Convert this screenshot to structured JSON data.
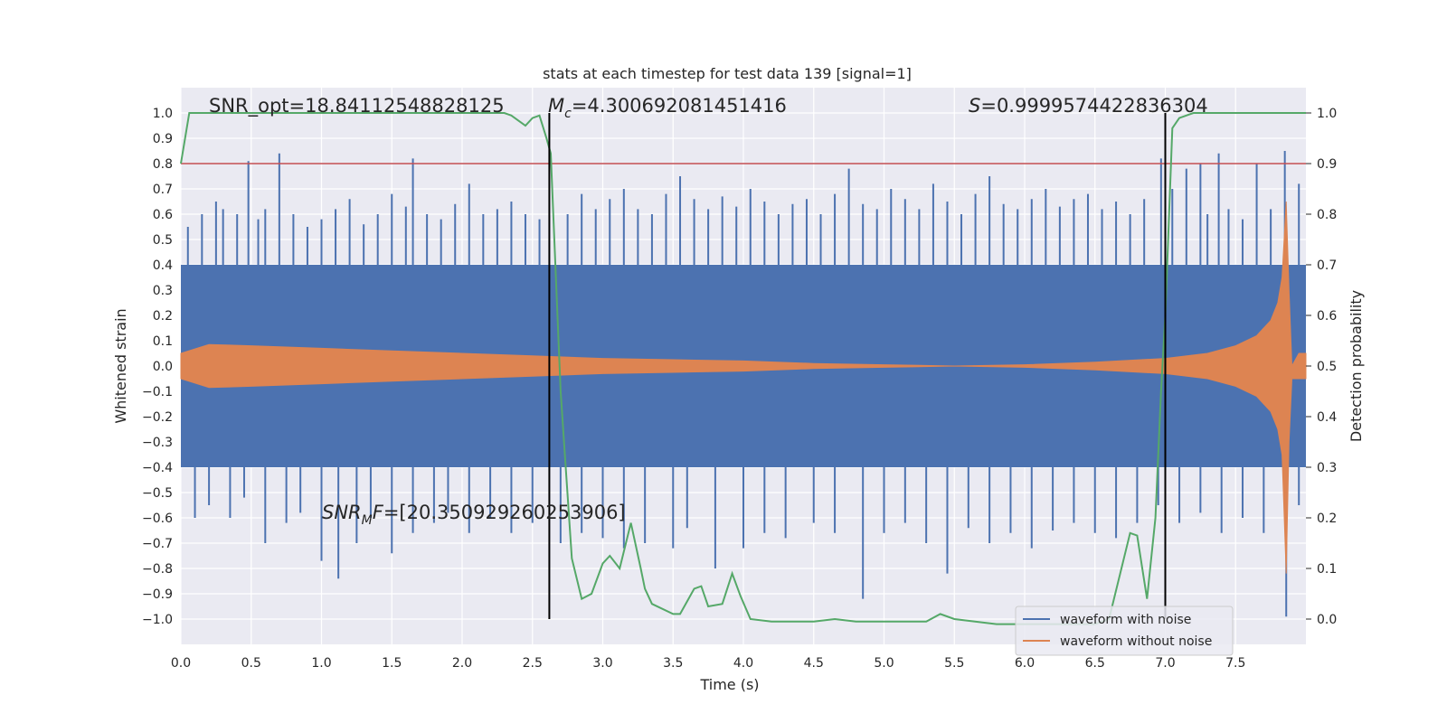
{
  "chart_data": {
    "type": "line",
    "title": "stats at each timestep for test data 139 [signal=1]",
    "xlabel": "Time (s)",
    "ylabel": "Whitened strain",
    "ylabel_right": "Detection probability",
    "xlim": [
      0.0,
      8.0
    ],
    "ylim": [
      -1.1,
      1.1
    ],
    "ylim_right": [
      -0.05,
      1.05
    ],
    "x_ticks": [
      "0.0",
      "0.5",
      "1.0",
      "1.5",
      "2.0",
      "2.5",
      "3.0",
      "3.5",
      "4.0",
      "4.5",
      "5.0",
      "5.5",
      "6.0",
      "6.5",
      "7.0",
      "7.5"
    ],
    "y_ticks": [
      "1.0",
      "0.9",
      "0.8",
      "0.7",
      "0.6",
      "0.5",
      "0.4",
      "0.3",
      "0.2",
      "0.1",
      "0.0",
      "−0.1",
      "−0.2",
      "−0.3",
      "−0.4",
      "−0.5",
      "−0.6",
      "−0.7",
      "−0.8",
      "−0.9",
      "−1.0"
    ],
    "y_ticks_right": [
      "1.0",
      "0.9",
      "0.8",
      "0.7",
      "0.6",
      "0.5",
      "0.4",
      "0.3",
      "0.2",
      "0.1",
      "0.0"
    ],
    "grid": true,
    "legend_position": "lower-right",
    "annotations": {
      "snr_opt": "SNR_opt=18.84112548828125",
      "mc": "=4.300692081451416",
      "s": "=0.9999574422836304",
      "snr_mf": "=[20.350929260253906]"
    },
    "threshold": {
      "y": 0.8,
      "color": "#c44e52"
    },
    "vlines": [
      {
        "x": 2.62,
        "ymin": -1.0,
        "ymax": 1.0,
        "color": "#000000"
      },
      {
        "x": 7.0,
        "ymin": -1.0,
        "ymax": 1.0,
        "color": "#000000"
      }
    ],
    "series": [
      {
        "name": "waveform with noise",
        "color": "#4c72b0",
        "band": {
          "x": [
            0.0,
            8.0
          ],
          "upper": [
            0.4,
            0.4
          ],
          "lower": [
            -0.4,
            -0.4
          ]
        },
        "spikes_up": [
          [
            0.05,
            0.55
          ],
          [
            0.15,
            0.6
          ],
          [
            0.25,
            0.65
          ],
          [
            0.3,
            0.62
          ],
          [
            0.4,
            0.6
          ],
          [
            0.48,
            0.81
          ],
          [
            0.55,
            0.58
          ],
          [
            0.6,
            0.62
          ],
          [
            0.7,
            0.84
          ],
          [
            0.8,
            0.6
          ],
          [
            0.9,
            0.55
          ],
          [
            1.0,
            0.58
          ],
          [
            1.1,
            0.62
          ],
          [
            1.2,
            0.66
          ],
          [
            1.3,
            0.56
          ],
          [
            1.4,
            0.6
          ],
          [
            1.5,
            0.68
          ],
          [
            1.6,
            0.63
          ],
          [
            1.65,
            0.82
          ],
          [
            1.75,
            0.6
          ],
          [
            1.85,
            0.58
          ],
          [
            1.95,
            0.64
          ],
          [
            2.05,
            0.72
          ],
          [
            2.15,
            0.6
          ],
          [
            2.25,
            0.62
          ],
          [
            2.35,
            0.65
          ],
          [
            2.45,
            0.6
          ],
          [
            2.55,
            0.58
          ],
          [
            2.75,
            0.6
          ],
          [
            2.85,
            0.68
          ],
          [
            2.95,
            0.62
          ],
          [
            3.05,
            0.66
          ],
          [
            3.15,
            0.7
          ],
          [
            3.25,
            0.62
          ],
          [
            3.35,
            0.6
          ],
          [
            3.45,
            0.68
          ],
          [
            3.55,
            0.75
          ],
          [
            3.65,
            0.66
          ],
          [
            3.75,
            0.62
          ],
          [
            3.85,
            0.67
          ],
          [
            3.95,
            0.63
          ],
          [
            4.05,
            0.7
          ],
          [
            4.15,
            0.65
          ],
          [
            4.25,
            0.6
          ],
          [
            4.35,
            0.64
          ],
          [
            4.45,
            0.66
          ],
          [
            4.55,
            0.6
          ],
          [
            4.65,
            0.68
          ],
          [
            4.75,
            0.78
          ],
          [
            4.85,
            0.64
          ],
          [
            4.95,
            0.62
          ],
          [
            5.05,
            0.7
          ],
          [
            5.15,
            0.66
          ],
          [
            5.25,
            0.62
          ],
          [
            5.35,
            0.72
          ],
          [
            5.45,
            0.65
          ],
          [
            5.55,
            0.6
          ],
          [
            5.65,
            0.68
          ],
          [
            5.75,
            0.75
          ],
          [
            5.85,
            0.64
          ],
          [
            5.95,
            0.62
          ],
          [
            6.05,
            0.66
          ],
          [
            6.15,
            0.7
          ],
          [
            6.25,
            0.63
          ],
          [
            6.35,
            0.66
          ],
          [
            6.45,
            0.68
          ],
          [
            6.55,
            0.62
          ],
          [
            6.65,
            0.65
          ],
          [
            6.75,
            0.6
          ],
          [
            6.85,
            0.66
          ],
          [
            6.97,
            0.82
          ],
          [
            7.05,
            0.7
          ],
          [
            7.15,
            0.78
          ],
          [
            7.25,
            0.8
          ],
          [
            7.3,
            0.6
          ],
          [
            7.38,
            0.84
          ],
          [
            7.45,
            0.62
          ],
          [
            7.55,
            0.58
          ],
          [
            7.65,
            0.8
          ],
          [
            7.75,
            0.62
          ],
          [
            7.85,
            0.85
          ],
          [
            7.95,
            0.72
          ]
        ],
        "spikes_down": [
          [
            0.1,
            -0.6
          ],
          [
            0.2,
            -0.55
          ],
          [
            0.35,
            -0.6
          ],
          [
            0.45,
            -0.52
          ],
          [
            0.6,
            -0.7
          ],
          [
            0.75,
            -0.62
          ],
          [
            0.85,
            -0.58
          ],
          [
            1.0,
            -0.77
          ],
          [
            1.12,
            -0.84
          ],
          [
            1.25,
            -0.7
          ],
          [
            1.35,
            -0.6
          ],
          [
            1.5,
            -0.74
          ],
          [
            1.65,
            -0.66
          ],
          [
            1.8,
            -0.62
          ],
          [
            1.9,
            -0.58
          ],
          [
            2.05,
            -0.66
          ],
          [
            2.2,
            -0.6
          ],
          [
            2.35,
            -0.66
          ],
          [
            2.5,
            -0.62
          ],
          [
            2.7,
            -0.7
          ],
          [
            2.85,
            -0.66
          ],
          [
            3.0,
            -0.68
          ],
          [
            3.15,
            -0.72
          ],
          [
            3.3,
            -0.7
          ],
          [
            3.5,
            -0.72
          ],
          [
            3.6,
            -0.64
          ],
          [
            3.8,
            -0.8
          ],
          [
            4.0,
            -0.72
          ],
          [
            4.15,
            -0.66
          ],
          [
            4.3,
            -0.68
          ],
          [
            4.5,
            -0.62
          ],
          [
            4.65,
            -0.66
          ],
          [
            4.85,
            -0.92
          ],
          [
            5.0,
            -0.66
          ],
          [
            5.15,
            -0.62
          ],
          [
            5.3,
            -0.7
          ],
          [
            5.45,
            -0.82
          ],
          [
            5.6,
            -0.64
          ],
          [
            5.75,
            -0.7
          ],
          [
            5.9,
            -0.66
          ],
          [
            6.05,
            -0.72
          ],
          [
            6.2,
            -0.65
          ],
          [
            6.35,
            -0.62
          ],
          [
            6.5,
            -0.66
          ],
          [
            6.65,
            -0.68
          ],
          [
            6.8,
            -0.62
          ],
          [
            6.95,
            -0.55
          ],
          [
            7.1,
            -0.62
          ],
          [
            7.25,
            -0.58
          ],
          [
            7.4,
            -0.66
          ],
          [
            7.55,
            -0.6
          ],
          [
            7.7,
            -0.66
          ],
          [
            7.86,
            -0.99
          ],
          [
            7.95,
            -0.55
          ]
        ]
      },
      {
        "name": "waveform without noise",
        "color": "#dd8452",
        "envelope": {
          "x": [
            0.0,
            0.2,
            0.5,
            1.0,
            1.5,
            2.0,
            2.5,
            3.0,
            3.5,
            4.0,
            4.5,
            5.0,
            5.5,
            6.0,
            6.5,
            7.0,
            7.3,
            7.5,
            7.65,
            7.75,
            7.8,
            7.83,
            7.86,
            7.88,
            7.9,
            7.95,
            8.0
          ],
          "upper": [
            0.05,
            0.085,
            0.08,
            0.07,
            0.06,
            0.05,
            0.04,
            0.03,
            0.025,
            0.02,
            0.01,
            0.005,
            0.0,
            0.005,
            0.015,
            0.03,
            0.05,
            0.08,
            0.12,
            0.18,
            0.25,
            0.35,
            0.65,
            0.3,
            0.0,
            0.05,
            0.05
          ],
          "lower": [
            -0.05,
            -0.085,
            -0.08,
            -0.07,
            -0.06,
            -0.05,
            -0.04,
            -0.03,
            -0.025,
            -0.02,
            -0.01,
            -0.005,
            0.0,
            -0.005,
            -0.015,
            -0.03,
            -0.05,
            -0.08,
            -0.12,
            -0.18,
            -0.25,
            -0.35,
            -0.82,
            -0.3,
            -0.05,
            -0.05,
            -0.05
          ]
        }
      },
      {
        "name": "detection probability",
        "color": "#55a868",
        "axis": "right",
        "x": [
          0.0,
          0.06,
          0.1,
          0.5,
          1.0,
          1.5,
          2.0,
          2.3,
          2.35,
          2.4,
          2.45,
          2.5,
          2.55,
          2.6,
          2.63,
          2.7,
          2.78,
          2.85,
          2.92,
          3.0,
          3.05,
          3.12,
          3.2,
          3.27,
          3.3,
          3.35,
          3.5,
          3.55,
          3.65,
          3.7,
          3.75,
          3.85,
          3.92,
          3.98,
          4.05,
          4.2,
          4.5,
          4.65,
          4.8,
          5.0,
          5.3,
          5.4,
          5.5,
          5.8,
          6.2,
          6.5,
          6.6,
          6.75,
          6.8,
          6.87,
          6.93,
          6.97,
          7.0,
          7.05,
          7.1,
          7.2,
          7.4,
          7.6,
          8.0
        ],
        "y": [
          0.9,
          1.0,
          1.0,
          1.0,
          1.0,
          1.0,
          1.0,
          1.0,
          0.995,
          0.985,
          0.975,
          0.99,
          0.995,
          0.95,
          0.92,
          0.45,
          0.12,
          0.04,
          0.05,
          0.11,
          0.125,
          0.1,
          0.19,
          0.1,
          0.06,
          0.03,
          0.01,
          0.01,
          0.06,
          0.065,
          0.025,
          0.03,
          0.09,
          0.045,
          0.0,
          -0.005,
          -0.005,
          0.0,
          -0.005,
          -0.005,
          -0.005,
          0.01,
          0.0,
          -0.01,
          -0.01,
          -0.01,
          0.0,
          0.17,
          0.165,
          0.04,
          0.2,
          0.45,
          0.6,
          0.97,
          0.99,
          1.0,
          1.0,
          1.0,
          1.0
        ]
      }
    ]
  }
}
